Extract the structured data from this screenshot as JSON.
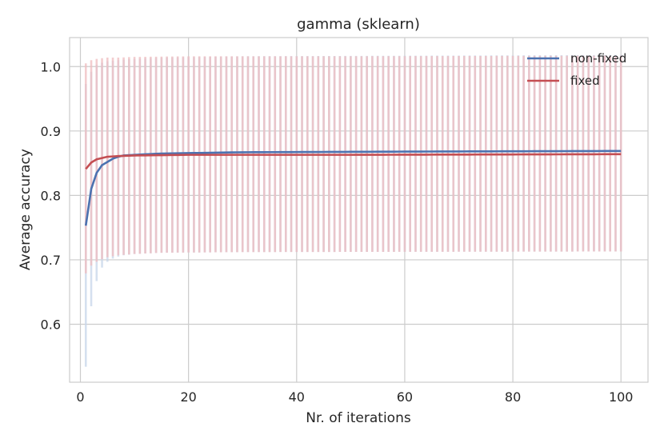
{
  "chart_data": {
    "type": "line",
    "title": "gamma (sklearn)",
    "xlabel": "Nr. of iterations",
    "ylabel": "Average accuracy",
    "xlim": [
      -2,
      105
    ],
    "ylim": [
      0.51,
      1.045
    ],
    "xticks": [
      0,
      20,
      40,
      60,
      80,
      100
    ],
    "xtick_labels": [
      "0",
      "20",
      "40",
      "60",
      "80",
      "100"
    ],
    "yticks": [
      0.6,
      0.7,
      0.8,
      0.9,
      1.0
    ],
    "ytick_labels": [
      "0.6",
      "0.7",
      "0.8",
      "0.9",
      "1.0"
    ],
    "grid": true,
    "legend_position": "top-right",
    "x_range": [
      1,
      100
    ],
    "series": [
      {
        "name": "non-fixed",
        "color": "#4c72b0",
        "errorbar_color": "#c7d5e9",
        "mean_points": [
          [
            1,
            0.753
          ],
          [
            2,
            0.81
          ],
          [
            3,
            0.835
          ],
          [
            4,
            0.847
          ],
          [
            5,
            0.852
          ],
          [
            6,
            0.857
          ],
          [
            7,
            0.86
          ],
          [
            8,
            0.862
          ],
          [
            10,
            0.863
          ],
          [
            15,
            0.865
          ],
          [
            30,
            0.867
          ],
          [
            60,
            0.868
          ],
          [
            100,
            0.869
          ]
        ],
        "lower_points": [
          [
            1,
            0.534
          ],
          [
            2,
            0.628
          ],
          [
            3,
            0.667
          ],
          [
            4,
            0.688
          ],
          [
            5,
            0.697
          ],
          [
            6,
            0.702
          ],
          [
            7,
            0.705
          ],
          [
            8,
            0.707
          ],
          [
            10,
            0.709
          ],
          [
            15,
            0.711
          ],
          [
            30,
            0.712
          ],
          [
            100,
            0.713
          ]
        ],
        "upper_points": [
          [
            1,
            0.973
          ],
          [
            2,
            0.992
          ],
          [
            3,
            1.003
          ],
          [
            4,
            1.006
          ],
          [
            5,
            1.008
          ],
          [
            7,
            1.01
          ],
          [
            10,
            1.012
          ],
          [
            15,
            1.014
          ],
          [
            30,
            1.016
          ],
          [
            100,
            1.018
          ]
        ]
      },
      {
        "name": "fixed",
        "color": "#c44e52",
        "errorbar_color": "#efbcbf",
        "mean_points": [
          [
            1,
            0.841
          ],
          [
            2,
            0.851
          ],
          [
            3,
            0.856
          ],
          [
            4,
            0.858
          ],
          [
            5,
            0.86
          ],
          [
            7,
            0.861
          ],
          [
            10,
            0.862
          ],
          [
            20,
            0.863
          ],
          [
            50,
            0.863
          ],
          [
            100,
            0.864
          ]
        ],
        "lower_points": [
          [
            1,
            0.679
          ],
          [
            2,
            0.691
          ],
          [
            3,
            0.697
          ],
          [
            4,
            0.701
          ],
          [
            5,
            0.704
          ],
          [
            7,
            0.707
          ],
          [
            10,
            0.709
          ],
          [
            15,
            0.711
          ],
          [
            30,
            0.712
          ],
          [
            100,
            0.713
          ]
        ],
        "upper_points": [
          [
            1,
            1.005
          ],
          [
            2,
            1.01
          ],
          [
            3,
            1.012
          ],
          [
            4,
            1.013
          ],
          [
            5,
            1.014
          ],
          [
            7,
            1.014
          ],
          [
            10,
            1.015
          ],
          [
            20,
            1.016
          ],
          [
            50,
            1.016
          ],
          [
            100,
            1.017
          ]
        ]
      }
    ]
  }
}
